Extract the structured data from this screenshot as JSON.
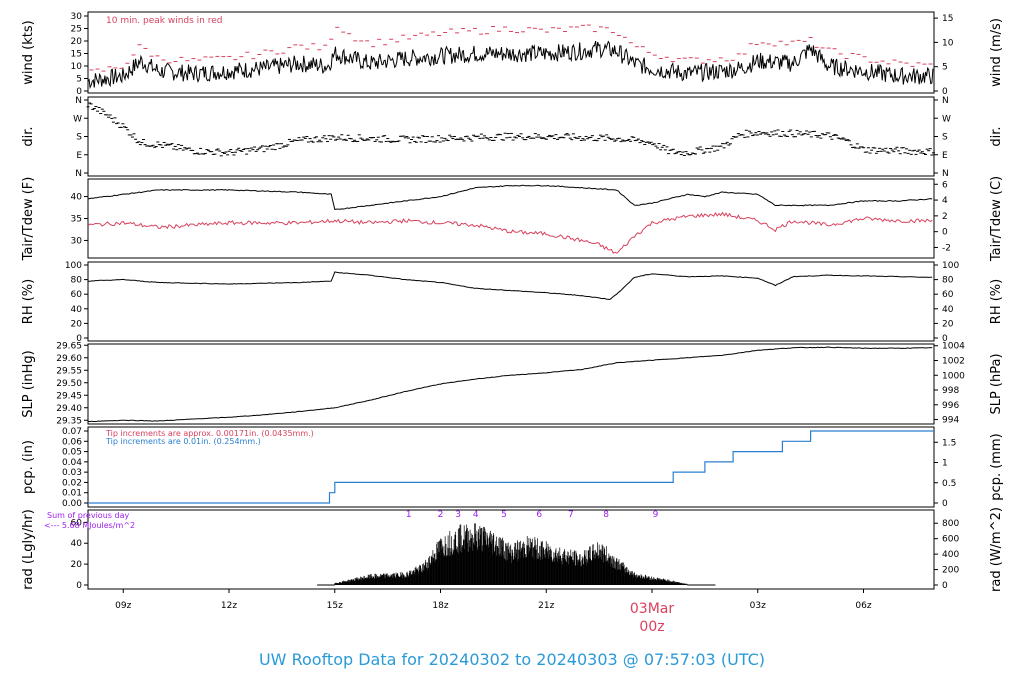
{
  "footer_title": "UW Rooftop Data for 20240302  to  20240303 @ 07:57:03  (UTC)",
  "colors": {
    "black": "#000000",
    "red": "#d8425e",
    "blue": "#2a7fd0",
    "purple": "#a020f0",
    "title": "#2a9ad8"
  },
  "x_axis": {
    "ticks": [
      {
        "h": 9,
        "label": "09z"
      },
      {
        "h": 12,
        "label": "12z"
      },
      {
        "h": 15,
        "label": "15z"
      },
      {
        "h": 18,
        "label": "18z"
      },
      {
        "h": 21,
        "label": "21z"
      },
      {
        "h": 27,
        "label": "03z"
      },
      {
        "h": 30,
        "label": "06z"
      }
    ],
    "date_label": "03Mar",
    "midnight_label": "00z",
    "midnight_h": 24
  },
  "chart_data": [
    {
      "type": "line",
      "panel": "wind",
      "ylabel_left": "wind (kts)",
      "ylabel_right": "wind (m/s)",
      "left_ticks": [
        "0",
        "5",
        "10",
        "15",
        "20",
        "25",
        "30"
      ],
      "right_ticks": [
        "0",
        "5",
        "10",
        "15"
      ],
      "note": "10 min. peak winds in red",
      "ylim": [
        0,
        30
      ],
      "series": [
        {
          "x": [
            8,
            9,
            9.5,
            10,
            11,
            12,
            13,
            14,
            14.8,
            15,
            15.5,
            16,
            17,
            18,
            19,
            20,
            21,
            22,
            22.5,
            23,
            23.5,
            24,
            25,
            26,
            26.5,
            27,
            28,
            28.5,
            29,
            30,
            31,
            32
          ],
          "y": [
            4,
            6,
            12,
            8,
            7,
            8,
            9,
            11,
            10,
            15,
            13,
            11,
            13,
            14,
            15,
            15,
            15,
            16,
            17,
            16,
            11,
            9,
            7,
            8,
            9,
            12,
            11,
            17,
            10,
            8,
            6,
            6
          ]
        },
        {
          "y_peak": [
            7,
            10,
            18,
            13,
            12,
            13,
            15,
            18,
            17,
            27,
            22,
            19,
            21,
            23,
            24,
            25,
            24,
            25,
            25,
            24,
            18,
            15,
            12,
            13,
            14,
            20,
            19,
            20,
            16,
            13,
            11,
            10
          ]
        }
      ]
    },
    {
      "type": "scatter",
      "panel": "dir",
      "ylabel_left": "dir.",
      "ylabel_right": "dir.",
      "left_ticks": [
        "N",
        "E",
        "S",
        "W",
        "N"
      ],
      "right_ticks": [
        "N",
        "E",
        "S",
        "W",
        "N"
      ],
      "series": [
        {
          "x": [
            8,
            8.5,
            9,
            9.5,
            10,
            11,
            12,
            13,
            14,
            15,
            16,
            17,
            18,
            19,
            20,
            21,
            22,
            23,
            24,
            24.5,
            25,
            26,
            26.5,
            27,
            28,
            29,
            29.5,
            30,
            31,
            32
          ],
          "y": [
            340,
            290,
            230,
            150,
            140,
            110,
            100,
            120,
            160,
            175,
            170,
            165,
            170,
            175,
            180,
            180,
            175,
            170,
            150,
            105,
            100,
            130,
            190,
            200,
            195,
            185,
            160,
            115,
            110,
            105
          ]
        }
      ]
    },
    {
      "type": "line",
      "panel": "temp",
      "ylabel_left": "Tair/Tdew (F)",
      "ylabel_right": "Tair/Tdew (C)",
      "left_ticks": [
        "30",
        "35",
        "40"
      ],
      "right_ticks": [
        "-2",
        "0",
        "2",
        "4",
        "6"
      ],
      "ylim": [
        26,
        44
      ],
      "series": [
        {
          "name": "Tair",
          "x": [
            8,
            9,
            10,
            12,
            14,
            14.9,
            15,
            16,
            17,
            18,
            19,
            20,
            21,
            22,
            23,
            23.5,
            24,
            25,
            25.5,
            26,
            27,
            27.5,
            28,
            29,
            30,
            31,
            32
          ],
          "y": [
            39.5,
            40.5,
            41.5,
            41.5,
            41,
            40.5,
            37,
            38,
            39,
            40,
            42,
            42.5,
            42.5,
            42,
            41.5,
            38,
            38.5,
            40.5,
            40,
            41,
            40.5,
            38,
            38,
            38,
            39,
            39,
            39.5
          ]
        },
        {
          "name": "Tdew",
          "x": [
            8,
            9,
            10,
            12,
            14,
            15,
            16,
            17,
            18,
            19,
            20,
            21,
            22,
            22.5,
            23,
            23.5,
            24,
            25,
            26,
            27,
            27.5,
            28,
            29,
            30,
            31,
            32
          ],
          "y": [
            33.5,
            34,
            33,
            34,
            34,
            34.5,
            34,
            34.5,
            34,
            33.5,
            32,
            31.5,
            30,
            29,
            27,
            31,
            34,
            35.5,
            36,
            34.5,
            32.5,
            34.5,
            33.5,
            35,
            34.5,
            34.5
          ]
        }
      ]
    },
    {
      "type": "line",
      "panel": "rh",
      "ylabel_left": "RH (%)",
      "ylabel_right": "RH (%)",
      "left_ticks": [
        "0",
        "20",
        "40",
        "60",
        "80",
        "100"
      ],
      "right_ticks": [
        "0",
        "20",
        "40",
        "60",
        "80",
        "100"
      ],
      "ylim": [
        0,
        100
      ],
      "series": [
        {
          "x": [
            8,
            9,
            10,
            12,
            14,
            14.9,
            15,
            16,
            17,
            18,
            19,
            20,
            21,
            22,
            22.8,
            23,
            23.5,
            24,
            25,
            26,
            27,
            27.5,
            28,
            29,
            30,
            31,
            32
          ],
          "y": [
            78,
            80,
            76,
            74,
            76,
            78,
            90,
            86,
            80,
            76,
            68,
            65,
            62,
            58,
            53,
            60,
            83,
            88,
            84,
            85,
            82,
            72,
            84,
            86,
            85,
            84,
            83
          ]
        }
      ]
    },
    {
      "type": "line",
      "panel": "slp",
      "ylabel_left": "SLP (inHg)",
      "ylabel_right": "SLP (hPa)",
      "left_ticks": [
        "29.35",
        "29.40",
        "29.45",
        "29.50",
        "29.55",
        "29.60",
        "29.65"
      ],
      "right_ticks": [
        "994",
        "996",
        "998",
        "1000",
        "1002",
        "1004"
      ],
      "ylim": [
        29.335,
        29.655
      ],
      "series": [
        {
          "x": [
            8,
            9,
            10,
            11,
            12,
            13,
            14,
            15,
            16,
            17,
            18,
            19,
            20,
            21,
            22,
            23,
            24,
            25,
            26,
            27,
            28,
            29,
            30,
            31,
            32
          ],
          "y": [
            29.345,
            29.35,
            29.347,
            29.355,
            29.362,
            29.372,
            29.385,
            29.4,
            29.43,
            29.465,
            29.495,
            29.515,
            29.53,
            29.54,
            29.553,
            29.58,
            29.59,
            29.6,
            29.61,
            29.63,
            29.64,
            29.642,
            29.638,
            29.638,
            29.64
          ]
        }
      ]
    },
    {
      "type": "line",
      "panel": "pcp",
      "ylabel_left": "pcp. (in)",
      "ylabel_right": "pcp. (mm)",
      "left_ticks": [
        "0.00",
        "0.01",
        "0.02",
        "0.03",
        "0.04",
        "0.05",
        "0.06",
        "0.07"
      ],
      "right_ticks": [
        "0",
        "0.5",
        "1",
        "1.5"
      ],
      "ylim": [
        0,
        0.07
      ],
      "notes": [
        "Tip increments are approx. 0.00171in. (0.0435mm.)",
        "Tip increments are 0.01in. (0.254mm.)"
      ],
      "series": [
        {
          "x": [
            8,
            14.85,
            14.85,
            15,
            15,
            24.6,
            24.6,
            25.5,
            25.5,
            26.3,
            26.3,
            27.7,
            27.7,
            28.5,
            28.5,
            32
          ],
          "y": [
            0,
            0,
            0.01,
            0.01,
            0.02,
            0.02,
            0.03,
            0.03,
            0.04,
            0.04,
            0.05,
            0.05,
            0.06,
            0.06,
            0.07,
            0.07
          ]
        }
      ]
    },
    {
      "type": "area",
      "panel": "rad",
      "ylabel_left": "rad (Lgly/hr)",
      "ylabel_right": "rad (W/m^2)",
      "left_ticks": [
        "0",
        "20",
        "40",
        "60"
      ],
      "right_ticks": [
        "0",
        "200",
        "400",
        "600",
        "800"
      ],
      "ylim": [
        0,
        68
      ],
      "markers": [
        "1",
        "2",
        "3",
        "4",
        "5",
        "6",
        "7",
        "8",
        "9"
      ],
      "sum_label": "Sum of previous day",
      "sum_value": "<--- 5.68 MJoules/m^2",
      "series": [
        {
          "x": [
            14.5,
            15,
            15.5,
            16,
            16.5,
            17,
            17.5,
            18,
            18.5,
            19,
            19.5,
            20,
            20.5,
            21,
            21.5,
            22,
            22.5,
            23,
            23.5,
            24,
            24.5,
            25
          ],
          "y": [
            0,
            2,
            6,
            10,
            11,
            12,
            20,
            45,
            55,
            58,
            52,
            38,
            46,
            40,
            35,
            30,
            42,
            26,
            12,
            8,
            5,
            1
          ]
        }
      ]
    }
  ]
}
